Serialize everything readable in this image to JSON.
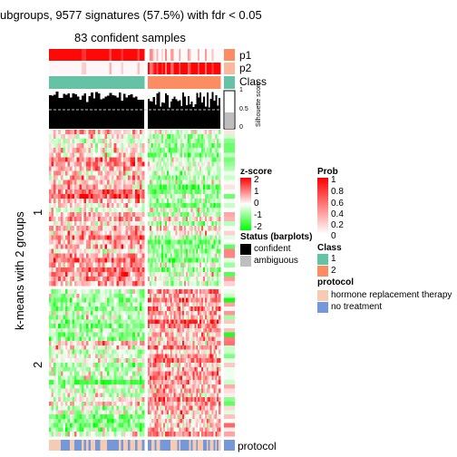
{
  "header": {
    "title": "ubgroups, 9577 signatures (57.5%) with fdr < 0.05",
    "subtitle": "83 confident samples"
  },
  "annotations": {
    "p1": "p1",
    "p2": "p2",
    "class": "Class",
    "protocol": "protocol"
  },
  "silhouette": {
    "axis_label": "Silhouette score",
    "ticks": [
      "1",
      "0.5",
      "0"
    ]
  },
  "row_title": "k-means with 2 groups",
  "row_groups": [
    "1",
    "2"
  ],
  "legends": {
    "zscore": {
      "title": "z-score",
      "ticks": [
        "2",
        "1",
        "0",
        "-1",
        "-2"
      ]
    },
    "prob": {
      "title": "Prob",
      "ticks": [
        "1",
        "0.8",
        "0.6",
        "0.4",
        "0.2",
        "0"
      ]
    },
    "status": {
      "title": "Status (barplots)",
      "items": [
        "confident",
        "ambiguous"
      ]
    },
    "class": {
      "title": "Class",
      "items": [
        "1",
        "2"
      ]
    },
    "protocol": {
      "title": "protocol",
      "items": [
        "hormone replacement therapy",
        "no treatment"
      ]
    }
  },
  "colors": {
    "class1": "#66C2A5",
    "class2": "#FC8D62",
    "confident": "#000000",
    "ambiguous": "#BEBEBE",
    "hormone": "#F5CBB4",
    "no_treatment": "#7498DA",
    "red": "#FF0000",
    "green": "#00FF00"
  },
  "chart_data": {
    "type": "heatmap",
    "n_samples_left": 41,
    "n_samples_right": 42,
    "n_rows_top": 34,
    "n_rows_bottom": 34,
    "prob_range": [
      0,
      1
    ],
    "zscore_range": [
      -2,
      2
    ]
  }
}
